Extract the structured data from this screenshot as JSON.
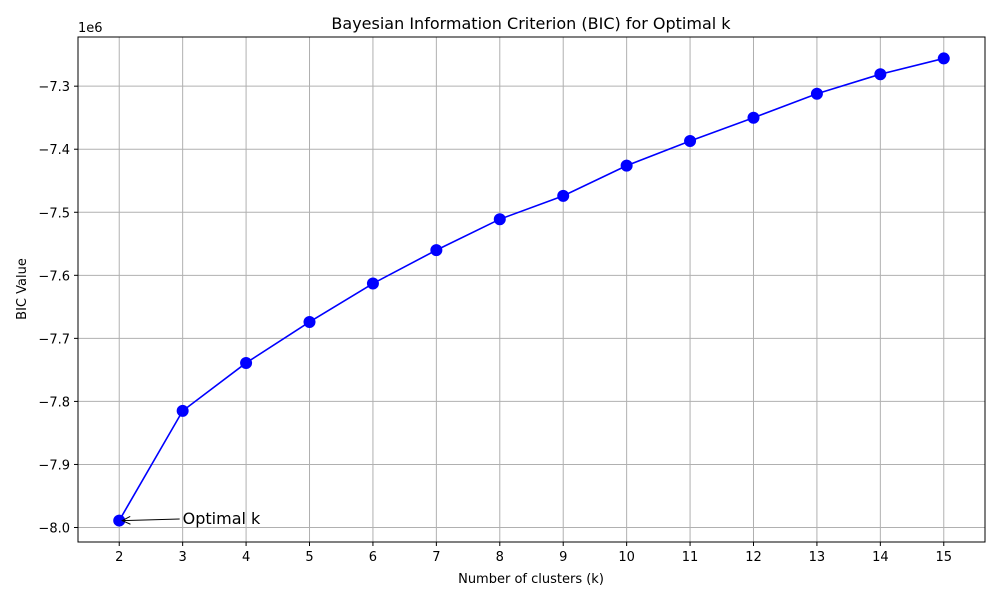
{
  "chart_data": {
    "type": "line",
    "title": "Bayesian Information Criterion (BIC) for Optimal k",
    "xlabel": "Number of clusters (k)",
    "ylabel": "BIC Value",
    "y_offset_label": "1e6",
    "x": [
      2,
      3,
      4,
      5,
      6,
      7,
      8,
      9,
      10,
      11,
      12,
      13,
      14,
      15
    ],
    "values": [
      -7989000,
      -7815000,
      -7739000,
      -7674000,
      -7613000,
      -7560000,
      -7511000,
      -7474000,
      -7426000,
      -7387000,
      -7350000,
      -7312000,
      -7281000,
      -7256000
    ],
    "xlim": [
      1.35,
      15.65
    ],
    "ylim": [
      -8023000,
      -7222000
    ],
    "x_ticks": [
      2,
      3,
      4,
      5,
      6,
      7,
      8,
      9,
      10,
      11,
      12,
      13,
      14,
      15
    ],
    "y_ticks": [
      -8000000,
      -7900000,
      -7800000,
      -7700000,
      -7600000,
      -7500000,
      -7400000,
      -7300000
    ],
    "y_tick_labels": [
      "−8.0",
      "−7.9",
      "−7.8",
      "−7.7",
      "−7.6",
      "−7.5",
      "−7.4",
      "−7.3"
    ],
    "grid": true,
    "line_color": "#0000ff",
    "marker_color": "#0000ff",
    "annotation": {
      "text": "Optimal k",
      "point": [
        2,
        -7989000
      ],
      "text_pos": [
        3,
        -7985000
      ]
    }
  }
}
